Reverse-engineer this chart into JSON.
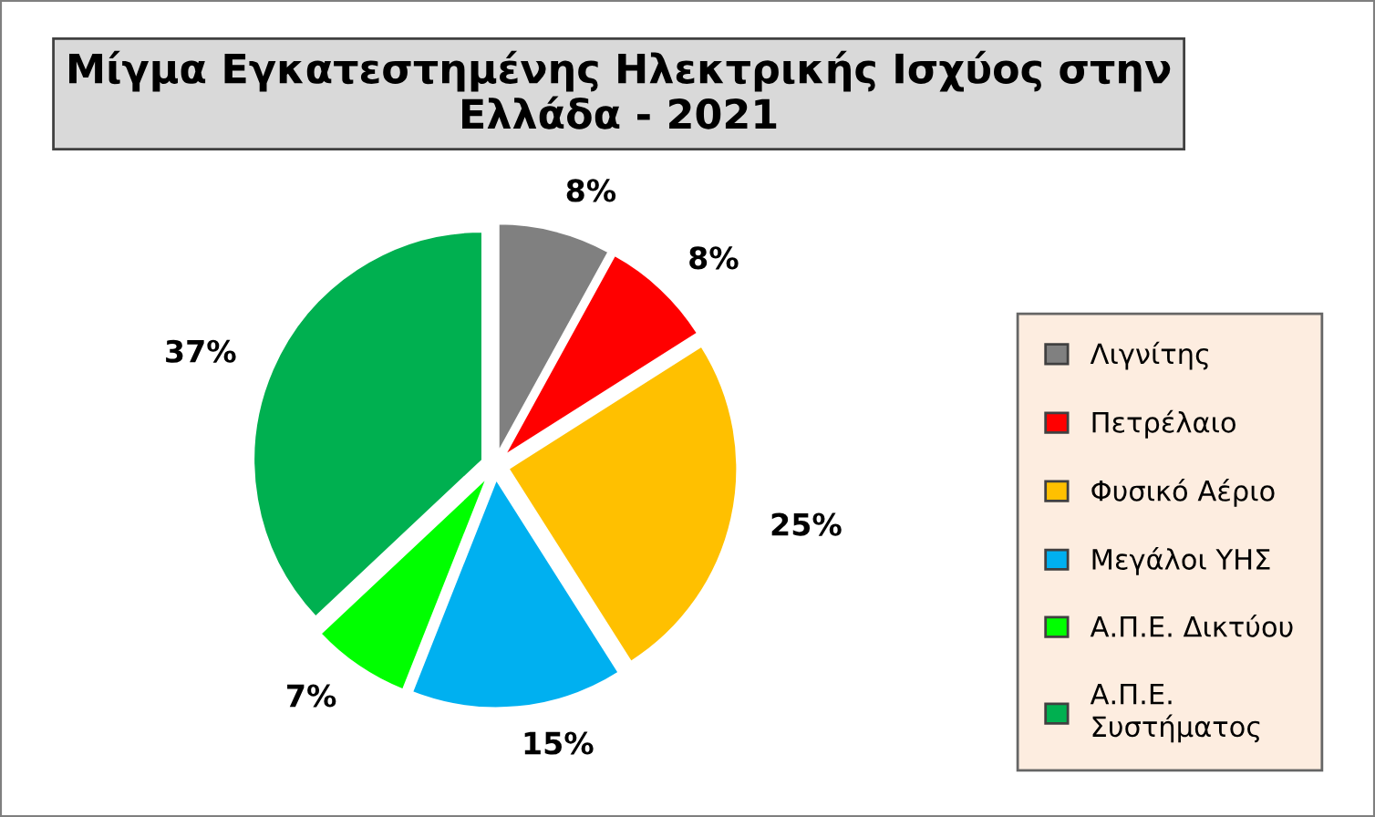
{
  "chart_data": {
    "type": "pie",
    "title": "Μίγμα Εγκατεστημένης Ηλεκτρικής Ισχύος στην Ελλάδα - 2021",
    "categories": [
      "Λιγνίτης",
      "Πετρέλαιο",
      "Φυσικό Αέριο",
      "Μεγάλοι ΥΗΣ",
      "Α.Π.Ε. Δικτύου",
      "Α.Π.Ε. Συστήματος"
    ],
    "values": [
      8,
      8,
      25,
      15,
      7,
      37
    ],
    "colors": [
      "#808080",
      "#ff0000",
      "#ffc000",
      "#00b0f0",
      "#00ff00",
      "#00b050"
    ],
    "value_labels": [
      "8%",
      "8%",
      "25%",
      "15%",
      "7%",
      "37%"
    ],
    "legend": "right"
  }
}
